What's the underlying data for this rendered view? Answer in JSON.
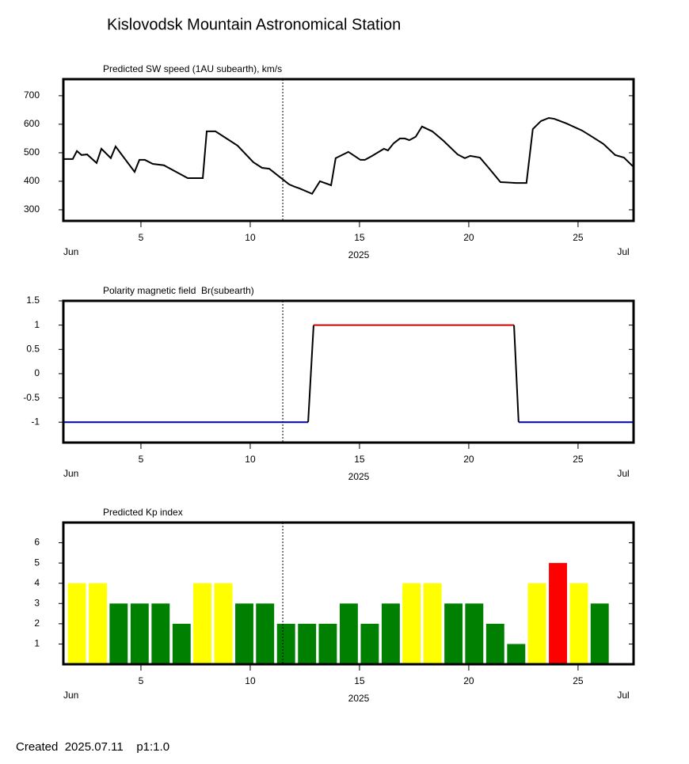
{
  "title": "Kislovodsk Mountain Astronomical Station",
  "footer": "Created  2025.07.11    p1:1.0",
  "chart_data": [
    {
      "type": "line",
      "title": "Predicted SW speed (1AU subearth), km/s",
      "month_start": "Jun",
      "month_end": "Jul",
      "year": "2025",
      "now": 11.49,
      "xlim": [
        1.45,
        27.54
      ],
      "xticks": [
        5,
        10,
        15,
        20,
        25
      ],
      "ylim": [
        261,
        758
      ],
      "yticks": [
        700,
        600,
        500,
        400,
        300
      ],
      "series": [
        {
          "color": "#000000",
          "x": [
            1.45,
            1.88,
            2.07,
            2.28,
            2.54,
            2.97,
            3.19,
            3.62,
            3.84,
            4.71,
            4.93,
            5.18,
            5.54,
            6.05,
            7.14,
            7.83,
            8.01,
            8.41,
            9.42,
            10.14,
            10.54,
            10.87,
            11.78,
            12.03,
            12.25,
            12.83,
            13.19,
            13.7,
            13.91,
            14.49,
            14.71,
            15.04,
            15.25,
            15.58,
            16.12,
            16.3,
            16.56,
            16.85,
            17.07,
            17.28,
            17.57,
            17.86,
            18.33,
            18.84,
            19.49,
            19.82,
            20.07,
            20.51,
            20.91,
            21.45,
            22.17,
            22.64,
            22.93,
            23.3,
            23.66,
            23.91,
            24.46,
            25.18,
            25.54,
            26.16,
            26.7,
            27.1,
            27.54
          ],
          "values": [
            478,
            478,
            506,
            492,
            494,
            464,
            514,
            481,
            522,
            433,
            475,
            475,
            461,
            456,
            411,
            411,
            575,
            575,
            525,
            467,
            447,
            444,
            389,
            381,
            375,
            356,
            400,
            386,
            481,
            503,
            492,
            475,
            475,
            489,
            514,
            508,
            533,
            550,
            550,
            544,
            556,
            592,
            575,
            542,
            494,
            481,
            489,
            483,
            447,
            397,
            394,
            394,
            583,
            611,
            622,
            619,
            603,
            578,
            561,
            531,
            492,
            483,
            450
          ]
        }
      ]
    },
    {
      "type": "line",
      "title": "Polarity magnetic field  Br(subearth)",
      "month_start": "Jun",
      "month_end": "Jul",
      "year": "2025",
      "now": 11.49,
      "xlim": [
        1.45,
        27.54
      ],
      "xticks": [
        5,
        10,
        15,
        20,
        25
      ],
      "ylim": [
        -1.42,
        1.5
      ],
      "yticks": [
        1.5,
        1,
        0.5,
        0,
        -0.5,
        -1
      ],
      "series": [
        {
          "color": "#0000a0",
          "x": [
            1.45,
            12.65
          ],
          "values": [
            -1,
            -1
          ]
        },
        {
          "color": "#000000",
          "x": [
            12.65,
            12.9
          ],
          "values": [
            -1,
            1
          ]
        },
        {
          "color": "#d00000",
          "x": [
            12.9,
            22.07
          ],
          "values": [
            1,
            1
          ]
        },
        {
          "color": "#000000",
          "x": [
            22.07,
            22.28
          ],
          "values": [
            1,
            -1
          ]
        },
        {
          "color": "#0000a0",
          "x": [
            22.28,
            27.54
          ],
          "values": [
            -1,
            -1
          ]
        }
      ]
    },
    {
      "type": "bar",
      "title": "Predicted Kp index",
      "month_start": "Jun",
      "month_end": "Jul",
      "year": "2025",
      "now": 11.49,
      "xlim": [
        1.45,
        27.54
      ],
      "xticks": [
        5,
        10,
        15,
        20,
        25
      ],
      "ylim": [
        0,
        7
      ],
      "yticks": [
        6,
        5,
        4,
        3,
        2,
        1
      ],
      "x": [
        2.07,
        3.03,
        3.98,
        4.94,
        5.9,
        6.86,
        7.81,
        8.77,
        9.73,
        10.68,
        11.64,
        12.6,
        13.55,
        14.51,
        15.47,
        16.43,
        17.38,
        18.34,
        19.3,
        20.25,
        21.21,
        22.17,
        23.12,
        24.08,
        25.04,
        25.99
      ],
      "values": [
        4,
        4,
        3,
        3,
        3,
        2,
        4,
        4,
        3,
        3,
        2,
        2,
        2,
        3,
        2,
        3,
        4,
        4,
        3,
        3,
        2,
        1,
        4,
        5,
        4,
        3
      ],
      "colors": [
        "#ffff00",
        "#ffff00",
        "#008000",
        "#008000",
        "#008000",
        "#008000",
        "#ffff00",
        "#ffff00",
        "#008000",
        "#008000",
        "#008000",
        "#008000",
        "#008000",
        "#008000",
        "#008000",
        "#008000",
        "#ffff00",
        "#ffff00",
        "#008000",
        "#008000",
        "#008000",
        "#008000",
        "#ffff00",
        "#ff0000",
        "#ffff00",
        "#008000"
      ]
    }
  ]
}
